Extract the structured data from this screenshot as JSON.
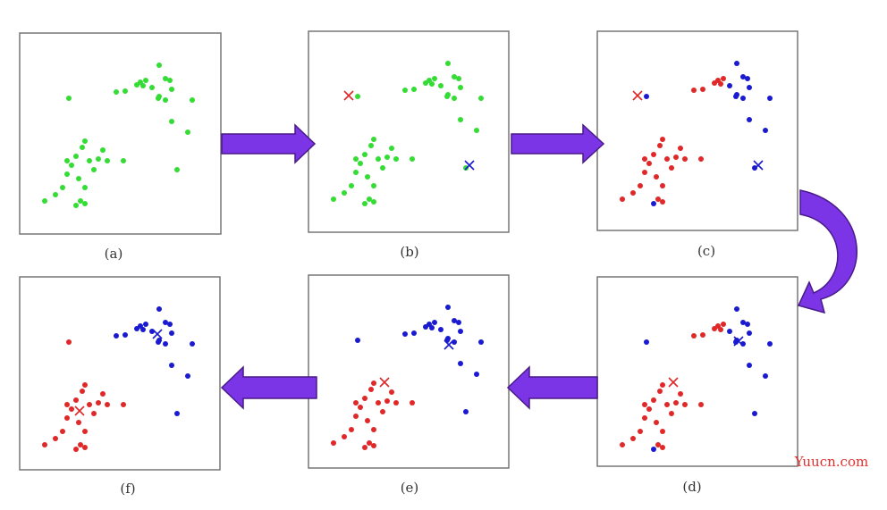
{
  "panels": [
    {
      "label": "(a)"
    },
    {
      "label": "(b)"
    },
    {
      "label": "(c)"
    },
    {
      "label": "(d)"
    },
    {
      "label": "(e)"
    },
    {
      "label": "(f)"
    }
  ],
  "watermark": "Yuucn.com"
}
